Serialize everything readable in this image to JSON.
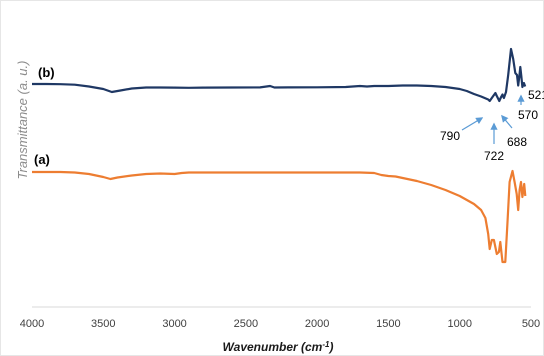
{
  "chart_data": {
    "type": "line",
    "title": "",
    "xlabel_main": "Wavenumber (cm",
    "xlabel_sup": "-1",
    "xlabel_close": ")",
    "ylabel": "Transmittance (a. u.)",
    "xlim": [
      4000,
      500
    ],
    "x_reversed": true,
    "x_ticks": [
      "4000",
      "3500",
      "3000",
      "2500",
      "2000",
      "1500",
      "1000",
      "500"
    ],
    "grid": false,
    "series": [
      {
        "name": "(b)",
        "color": "#1f3864",
        "points": [
          [
            4000,
            1.0
          ],
          [
            3900,
            1.0
          ],
          [
            3800,
            0.8
          ],
          [
            3700,
            0.3
          ],
          [
            3600,
            -1.5
          ],
          [
            3500,
            -4.0
          ],
          [
            3440,
            -7.0
          ],
          [
            3380,
            -5.5
          ],
          [
            3300,
            -3.5
          ],
          [
            3200,
            -2.5
          ],
          [
            3100,
            -2.5
          ],
          [
            3000,
            -2.6
          ],
          [
            2900,
            -2.8
          ],
          [
            2800,
            -2.6
          ],
          [
            2600,
            -2.5
          ],
          [
            2400,
            -2.4
          ],
          [
            2330,
            -1.0
          ],
          [
            2300,
            -2.5
          ],
          [
            2200,
            -2.4
          ],
          [
            2000,
            -2.3
          ],
          [
            1800,
            -2.0
          ],
          [
            1700,
            -1.0
          ],
          [
            1650,
            -1.5
          ],
          [
            1600,
            -1.0
          ],
          [
            1500,
            -1.0
          ],
          [
            1400,
            -0.5
          ],
          [
            1300,
            -0.5
          ],
          [
            1200,
            -1.0
          ],
          [
            1100,
            -2.0
          ],
          [
            1000,
            -4.0
          ],
          [
            950,
            -6.0
          ],
          [
            900,
            -9.0
          ],
          [
            850,
            -11.5
          ],
          [
            800,
            -14.5
          ],
          [
            790,
            -16.0
          ],
          [
            770,
            -12.0
          ],
          [
            750,
            -8.0
          ],
          [
            740,
            -11.0
          ],
          [
            722,
            -16.0
          ],
          [
            710,
            -12.0
          ],
          [
            700,
            -9.5
          ],
          [
            690,
            -13.0
          ],
          [
            675,
            -7.0
          ],
          [
            660,
            10.0
          ],
          [
            640,
            36.0
          ],
          [
            625,
            26.0
          ],
          [
            610,
            12.0
          ],
          [
            598,
            10.0
          ],
          [
            590,
            -0.5
          ],
          [
            580,
            11.0
          ],
          [
            575,
            18.0
          ],
          [
            568,
            9.0
          ],
          [
            560,
            -2.0
          ],
          [
            550,
            2.0
          ],
          [
            541,
            -1.5
          ]
        ]
      },
      {
        "name": "(a)",
        "color": "#ed7d31",
        "points": [
          [
            4000,
            0.0
          ],
          [
            3800,
            0.0
          ],
          [
            3700,
            -0.5
          ],
          [
            3600,
            -2.0
          ],
          [
            3500,
            -5.0
          ],
          [
            3450,
            -7.0
          ],
          [
            3400,
            -5.5
          ],
          [
            3300,
            -3.5
          ],
          [
            3200,
            -2.0
          ],
          [
            3100,
            -1.5
          ],
          [
            3000,
            -2.0
          ],
          [
            2950,
            -1.0
          ],
          [
            2900,
            -0.5
          ],
          [
            2700,
            -0.5
          ],
          [
            2500,
            -0.5
          ],
          [
            2300,
            -0.5
          ],
          [
            2100,
            -0.5
          ],
          [
            1900,
            -0.5
          ],
          [
            1700,
            -0.5
          ],
          [
            1600,
            -1.0
          ],
          [
            1550,
            -3.0
          ],
          [
            1500,
            -4.0
          ],
          [
            1450,
            -4.5
          ],
          [
            1400,
            -6.0
          ],
          [
            1300,
            -9.0
          ],
          [
            1200,
            -13.0
          ],
          [
            1100,
            -18.0
          ],
          [
            1000,
            -24.0
          ],
          [
            900,
            -32.0
          ],
          [
            850,
            -38.0
          ],
          [
            820,
            -46.0
          ],
          [
            800,
            -62.0
          ],
          [
            790,
            -77.0
          ],
          [
            775,
            -68.0
          ],
          [
            760,
            -68.0
          ],
          [
            740,
            -82.0
          ],
          [
            725,
            -80.0
          ],
          [
            715,
            -70.0
          ],
          [
            700,
            -90.0
          ],
          [
            680,
            -90.0
          ],
          [
            665,
            -50.0
          ],
          [
            650,
            -10.0
          ],
          [
            630,
            1.0
          ],
          [
            615,
            -10.0
          ],
          [
            600,
            -22.0
          ],
          [
            590,
            -38.0
          ],
          [
            580,
            -18.0
          ],
          [
            570,
            -10.0
          ],
          [
            560,
            -25.0
          ],
          [
            548,
            -12.0
          ],
          [
            540,
            -24.0
          ]
        ]
      }
    ],
    "series_labels": [
      "(b)",
      "(a)"
    ],
    "annotations": [
      {
        "text": "790",
        "target_x": 790,
        "series": 0
      },
      {
        "text": "722",
        "target_x": 722,
        "series": 0
      },
      {
        "text": "688",
        "target_x": 688,
        "series": 0
      },
      {
        "text": "570",
        "target_x": 570,
        "series": 0
      },
      {
        "text": "521",
        "target_x": 521,
        "series": 0
      }
    ]
  }
}
